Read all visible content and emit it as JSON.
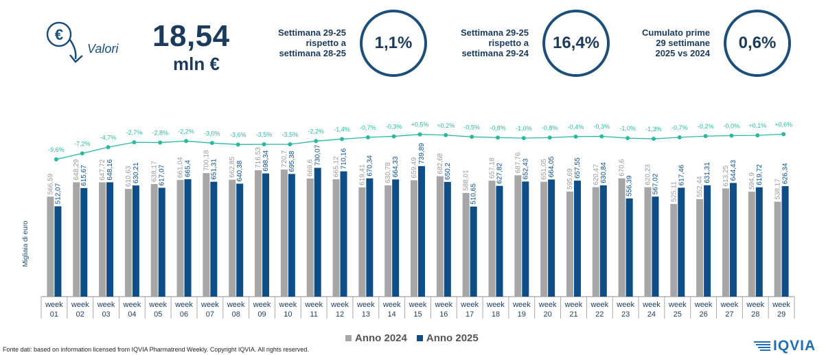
{
  "header": {
    "icon": "euro-down-arrow-icon",
    "label": "Valori",
    "big_value": "18,54",
    "big_unit": "mln €",
    "stats": [
      {
        "text": "Settimana 29-25\nrispetto a\nsettimana 28-25",
        "value": "1,1%"
      },
      {
        "text": "Settimana 29-25\nrispetto a\nsettimana 29-24",
        "value": "16,4%"
      },
      {
        "text": "Cumulato prime\n29 settimane\n2025 vs 2024",
        "value": "0,6%"
      }
    ]
  },
  "chart_data": {
    "type": "bar",
    "ylabel": "Migliaia di euro",
    "categories": [
      "week 01",
      "week 02",
      "week 03",
      "week 04",
      "week 05",
      "week 06",
      "week 07",
      "week 08",
      "week 09",
      "week 10",
      "week 11",
      "week 12",
      "week 13",
      "week 14",
      "week 15",
      "week 16",
      "week 17",
      "week 18",
      "week 19",
      "week 20",
      "week 21",
      "week 22",
      "week 23",
      "week 24",
      "week 25",
      "week 26",
      "week 27",
      "week 28",
      "week 29"
    ],
    "series": [
      {
        "name": "Anno 2024",
        "color": "#a6a6a6",
        "values": [
          566.59,
          648.29,
          647.72,
          610.63,
          638.17,
          661.04,
          700.18,
          662.85,
          716.53,
          720.7,
          669.6,
          665.12,
          619.41,
          630.78,
          659.49,
          682.68,
          588.01,
          657.18,
          687.76,
          651.05,
          595.69,
          620.47,
          670.6,
          620.23,
          525.11,
          552.44,
          613.25,
          594.9,
          538.17
        ],
        "labels": [
          "566,59",
          "648,29",
          "647,72",
          "610,63",
          "638,17",
          "661,04",
          "700,18",
          "662,85",
          "716,53",
          "720,7",
          "669,6",
          "665,12",
          "619,41",
          "630,78",
          "659,49",
          "682,68",
          "588,01",
          "657,18",
          "687,76",
          "651,05",
          "595,69",
          "620,47",
          "670,6",
          "620,23",
          "525,11",
          "552,44",
          "613,25",
          "594,9",
          "538,17"
        ]
      },
      {
        "name": "Anno 2025",
        "color": "#0e4e86",
        "values": [
          512.07,
          615.67,
          648.16,
          630.21,
          617.07,
          665.4,
          651.31,
          640.38,
          698.34,
          695.38,
          730.07,
          710.16,
          670.34,
          664.33,
          739.89,
          650.2,
          510.65,
          627.82,
          652.43,
          664.05,
          657.55,
          630.84,
          556.39,
          567.02,
          617.46,
          631.31,
          644.43,
          619.72,
          626.34
        ],
        "labels": [
          "512,07",
          "615,67",
          "648,16",
          "630,21",
          "617,07",
          "665,4",
          "651,31",
          "640,38",
          "698,34",
          "695,38",
          "730,07",
          "710,16",
          "670,34",
          "664,33",
          "739,89",
          "650,2",
          "510,65",
          "627,82",
          "652,43",
          "664,05",
          "657,55",
          "630,84",
          "556,39",
          "567,02",
          "617,46",
          "631,31",
          "644,43",
          "619,72",
          "626,34"
        ]
      }
    ],
    "growth": {
      "name": "",
      "color": "#2ab8a0",
      "values": [
        -9.6,
        -7.2,
        -4.7,
        -2.7,
        -2.8,
        -2.2,
        -3.0,
        -3.6,
        -3.5,
        -3.5,
        -2.2,
        -1.4,
        -0.7,
        -0.3,
        0.5,
        0.2,
        -0.5,
        -0.8,
        -1.0,
        -0.8,
        -0.4,
        -0.3,
        -1.0,
        -1.3,
        -0.7,
        -0.2,
        -0.0,
        0.1,
        0.6
      ],
      "labels": [
        "-9,6%",
        "-7,2%",
        "-4,7%",
        "-2,7%",
        "-2,8%",
        "-2,2%",
        "-3,0%",
        "-3,6%",
        "-3,5%",
        "-3,5%",
        "-2,2%",
        "-1,4%",
        "-0,7%",
        "-0,3%",
        "+0,5%",
        "+0,2%",
        "-0,5%",
        "-0,8%",
        "-1,0%",
        "-0,8%",
        "-0,4%",
        "-0,3%",
        "-1,0%",
        "-1,3%",
        "-0,7%",
        "-0,2%",
        "-0,0%",
        "+0,1%",
        "+0,6%"
      ]
    },
    "legend": "bottom-center",
    "grid": false
  },
  "footer": {
    "source": "Fonte dati: based on information licensed from IQVIA Pharmatrend Weekly. Copyright IQVIA. All rights reserved.",
    "logo_text": "IQVIA",
    "logo_icon": "iqvia-stripes-icon"
  }
}
